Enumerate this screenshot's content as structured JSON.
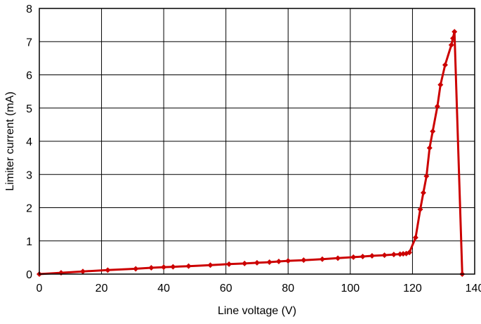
{
  "chart_data": {
    "type": "line",
    "title": "",
    "xlabel": "Line voltage (V)",
    "ylabel": "Limiter current (mA)",
    "xlim": [
      0,
      140
    ],
    "ylim": [
      0,
      8
    ],
    "x_ticks": [
      "0",
      "20",
      "40",
      "60",
      "80",
      "100",
      "120",
      "140"
    ],
    "y_ticks": [
      "0",
      "1",
      "2",
      "3",
      "4",
      "5",
      "6",
      "7",
      "8"
    ],
    "grid": true,
    "legend": "none",
    "series": [
      {
        "color": "#cc0000",
        "marker": "diamond",
        "points": [
          [
            0,
            0.0
          ],
          [
            7,
            0.04
          ],
          [
            14,
            0.08
          ],
          [
            22,
            0.12
          ],
          [
            31,
            0.16
          ],
          [
            36,
            0.19
          ],
          [
            40,
            0.21
          ],
          [
            43,
            0.22
          ],
          [
            48,
            0.24
          ],
          [
            55,
            0.27
          ],
          [
            61,
            0.3
          ],
          [
            66,
            0.32
          ],
          [
            70,
            0.34
          ],
          [
            74,
            0.36
          ],
          [
            77,
            0.38
          ],
          [
            80,
            0.4
          ],
          [
            85,
            0.42
          ],
          [
            91,
            0.45
          ],
          [
            96,
            0.48
          ],
          [
            101,
            0.51
          ],
          [
            104,
            0.53
          ],
          [
            107,
            0.55
          ],
          [
            111,
            0.57
          ],
          [
            114,
            0.59
          ],
          [
            116,
            0.6
          ],
          [
            117,
            0.61
          ],
          [
            118,
            0.62
          ],
          [
            119,
            0.65
          ],
          [
            121,
            1.1
          ],
          [
            122.5,
            1.95
          ],
          [
            123.5,
            2.45
          ],
          [
            124.5,
            2.95
          ],
          [
            125.5,
            3.8
          ],
          [
            126.5,
            4.3
          ],
          [
            128,
            5.05
          ],
          [
            129,
            5.7
          ],
          [
            130.5,
            6.3
          ],
          [
            132.5,
            6.9
          ],
          [
            133,
            7.1
          ],
          [
            133.5,
            7.3
          ],
          [
            136,
            0.0
          ]
        ]
      }
    ]
  }
}
